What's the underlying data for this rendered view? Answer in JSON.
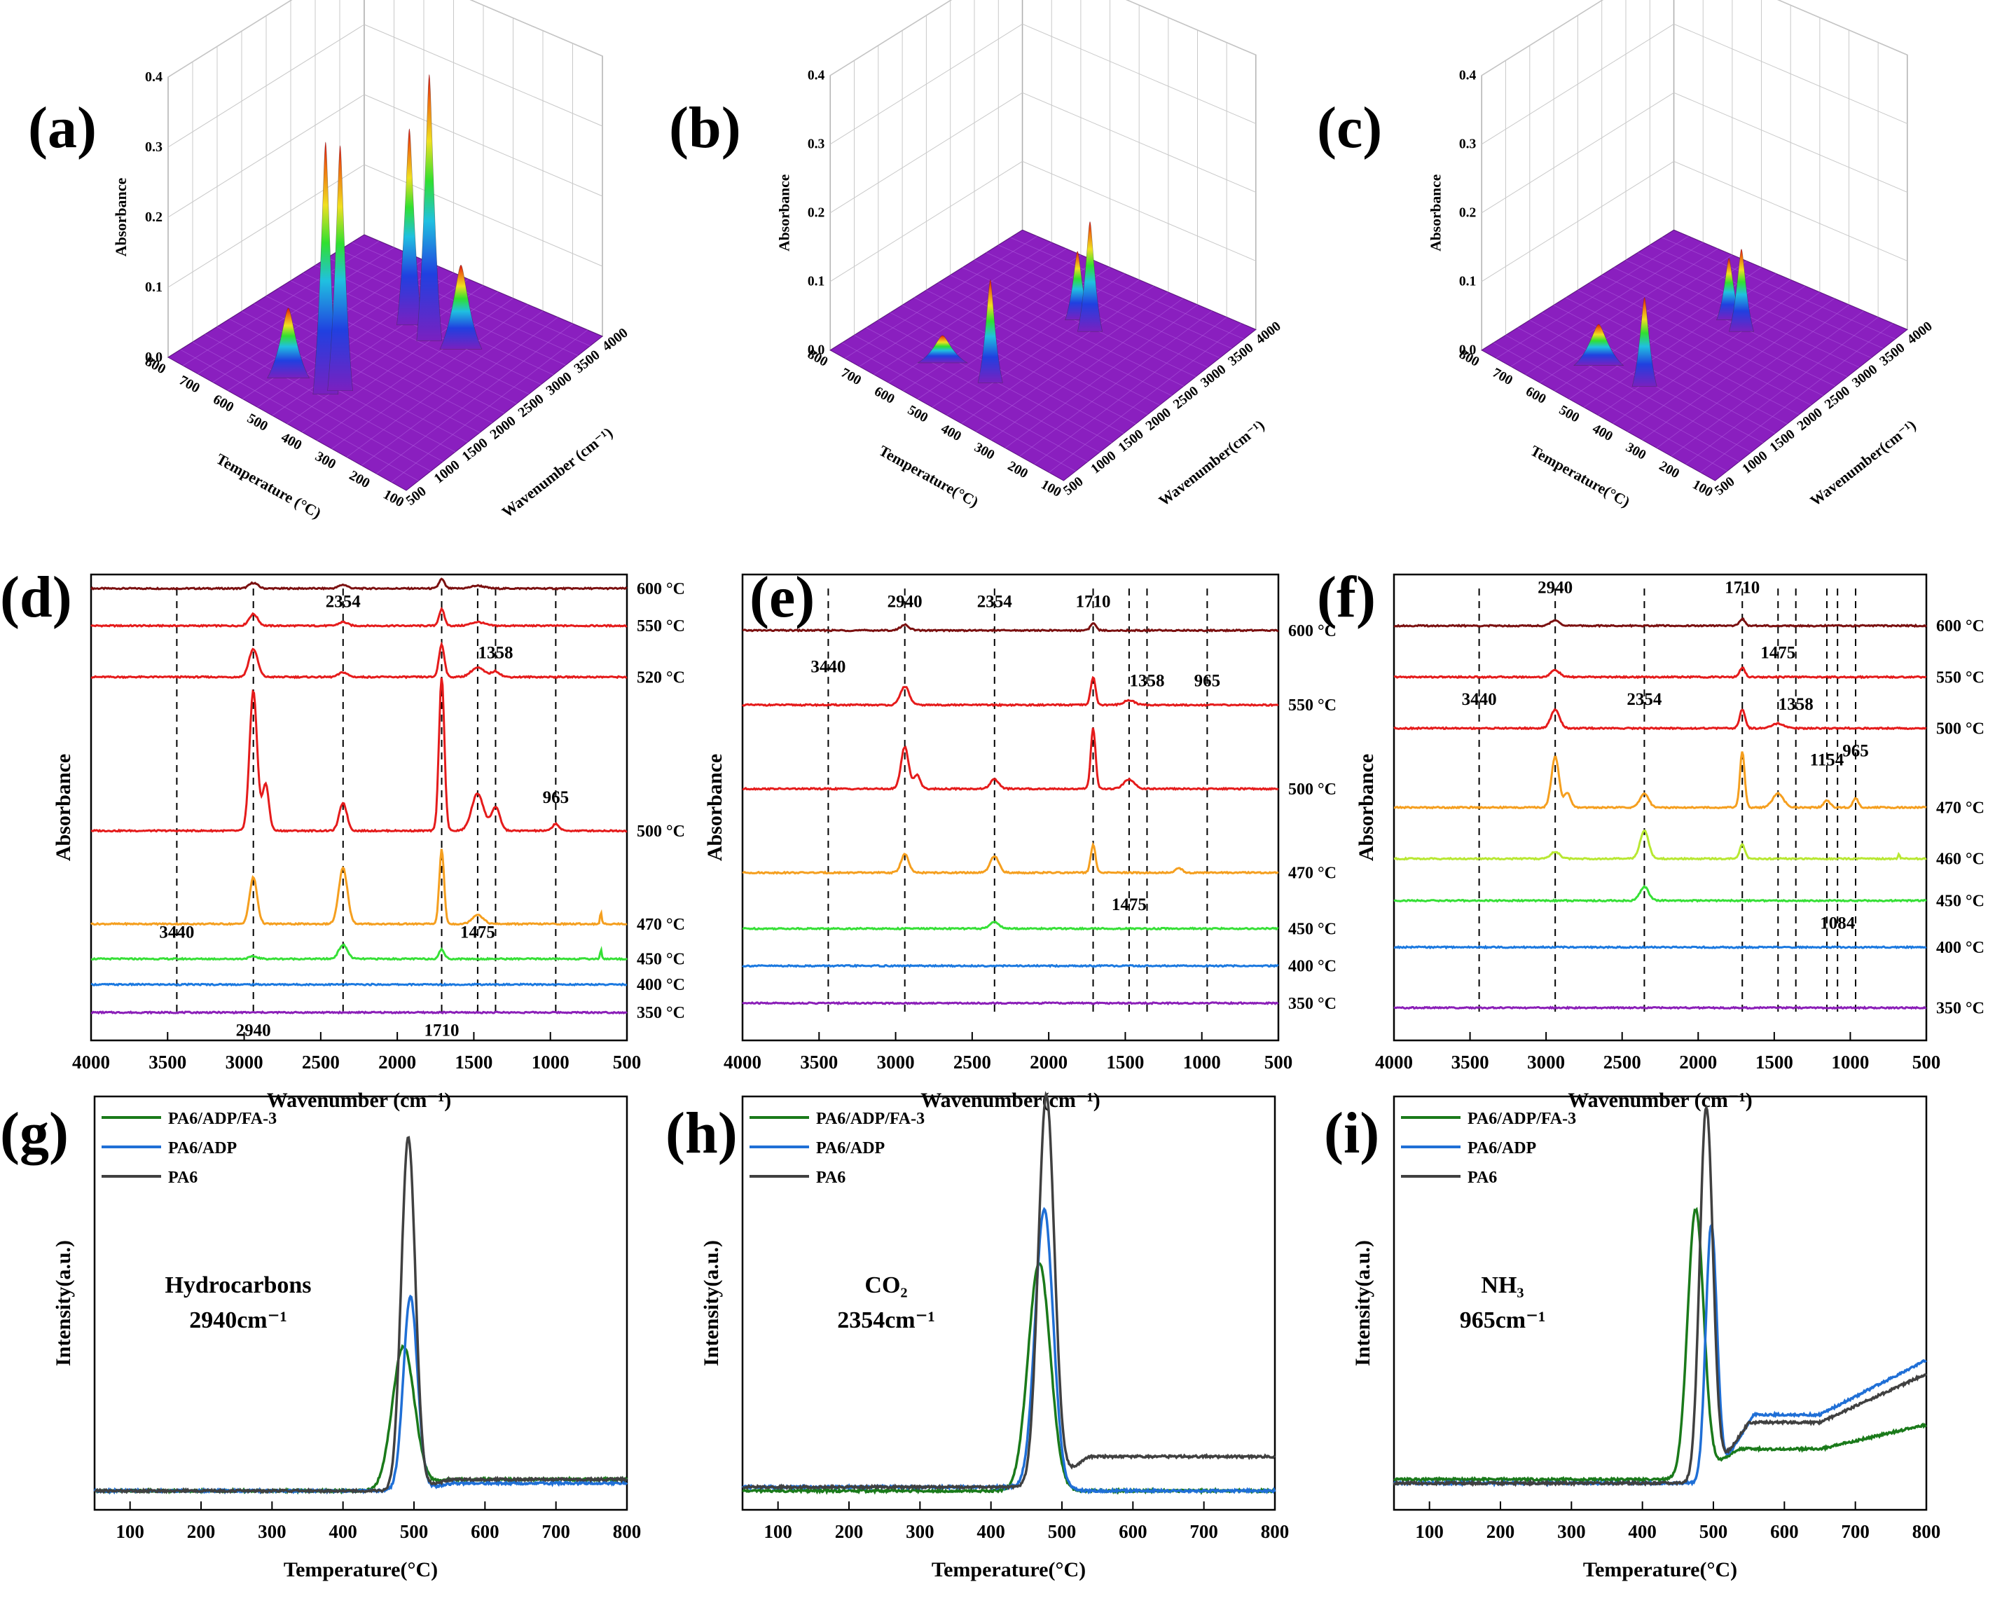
{
  "figure": {
    "panel_labels": [
      "(a)",
      "(b)",
      "(c)",
      "(d)",
      "(e)",
      "(f)",
      "(g)",
      "(h)",
      "(i)"
    ]
  },
  "surface_panels": [
    {
      "id": "a",
      "z_ticks": [
        "0.0",
        "0.1",
        "0.2",
        "0.3",
        "0.4"
      ],
      "z_label": "Absorbance",
      "temp_ticks": [
        "800",
        "700",
        "600",
        "500",
        "400",
        "300",
        "200",
        "100"
      ],
      "temp_label": "Temperature (°C)",
      "wn_ticks": [
        "500",
        "1000",
        "1500",
        "2000",
        "2500",
        "3000",
        "3500",
        "4000"
      ],
      "wn_label": "Wavenumber (cm⁻¹)"
    },
    {
      "id": "b",
      "z_ticks": [
        "0.0",
        "0.1",
        "0.2",
        "0.3",
        "0.4"
      ],
      "z_label": "Absorbance",
      "temp_ticks": [
        "800",
        "700",
        "600",
        "500",
        "400",
        "300",
        "200",
        "100"
      ],
      "temp_label": "Temperature(°C)",
      "wn_ticks": [
        "500",
        "1000",
        "1500",
        "2000",
        "2500",
        "3000",
        "3500",
        "4000"
      ],
      "wn_label": "Wavenumber(cm⁻¹)"
    },
    {
      "id": "c",
      "z_ticks": [
        "0.0",
        "0.1",
        "0.2",
        "0.3",
        "0.4"
      ],
      "z_label": "Absorbance",
      "temp_ticks": [
        "800",
        "700",
        "600",
        "500",
        "400",
        "300",
        "200",
        "100"
      ],
      "temp_label": "Temperature(°C)",
      "wn_ticks": [
        "500",
        "1000",
        "1500",
        "2000",
        "2500",
        "3000",
        "3500",
        "4000"
      ],
      "wn_label": "Wavenumber(cm⁻¹)"
    }
  ],
  "colors": {
    "600": "#7b1010",
    "550": "#e51b1b",
    "520": "#e51b1b",
    "500": "#e51b1b",
    "470": "#f59f1f",
    "460": "#b8e832",
    "450": "#36e036",
    "400": "#1b79e0",
    "350": "#8b1fb8",
    "PA6/ADP/FA-3": "#1a7a1a",
    "PA6/ADP": "#1f6fd6",
    "PA6": "#404040",
    "surface": "#8a1fbf"
  },
  "chart_data": [
    {
      "id": "d",
      "type": "line",
      "title": "",
      "xlabel": "Wavenumber (cm⁻¹)",
      "ylabel": "Absorbance",
      "xlim": [
        4000,
        500
      ],
      "x_ticks": [
        "4000",
        "3500",
        "3000",
        "2500",
        "2000",
        "1500",
        "1000",
        "500"
      ],
      "series": [
        {
          "name": "600 °C",
          "color_key": "600",
          "offset": 0.97,
          "peaks": [
            [
              2940,
              0.012,
              40
            ],
            [
              2354,
              0.008,
              40
            ],
            [
              1710,
              0.02,
              25
            ],
            [
              1475,
              0.006,
              60
            ]
          ]
        },
        {
          "name": "550 °C",
          "color_key": "550",
          "offset": 0.89,
          "peaks": [
            [
              2940,
              0.025,
              40
            ],
            [
              2354,
              0.008,
              40
            ],
            [
              1710,
              0.035,
              25
            ],
            [
              1475,
              0.008,
              60
            ]
          ]
        },
        {
          "name": "520 °C",
          "color_key": "520",
          "offset": 0.78,
          "peaks": [
            [
              2940,
              0.06,
              40
            ],
            [
              2354,
              0.01,
              40
            ],
            [
              1710,
              0.07,
              25
            ],
            [
              1475,
              0.02,
              60
            ],
            [
              1358,
              0.012,
              40
            ]
          ]
        },
        {
          "name": "500 °C",
          "color_key": "500",
          "offset": 0.45,
          "peaks": [
            [
              2940,
              0.3,
              35
            ],
            [
              2860,
              0.1,
              30
            ],
            [
              2354,
              0.06,
              35
            ],
            [
              1710,
              0.33,
              25
            ],
            [
              1475,
              0.08,
              55
            ],
            [
              1358,
              0.05,
              40
            ],
            [
              965,
              0.015,
              30
            ]
          ]
        },
        {
          "name": "470 °C",
          "color_key": "470",
          "offset": 0.25,
          "peaks": [
            [
              2940,
              0.1,
              35
            ],
            [
              2354,
              0.12,
              40
            ],
            [
              1710,
              0.16,
              22
            ],
            [
              1475,
              0.02,
              50
            ],
            [
              670,
              0.025,
              8
            ]
          ]
        },
        {
          "name": "450 °C",
          "color_key": "450",
          "offset": 0.175,
          "peaks": [
            [
              2940,
              0.005,
              40
            ],
            [
              2354,
              0.03,
              40
            ],
            [
              1710,
              0.02,
              25
            ],
            [
              670,
              0.02,
              8
            ]
          ]
        },
        {
          "name": "400 °C",
          "color_key": "400",
          "offset": 0.12,
          "peaks": []
        },
        {
          "name": "350 °C",
          "color_key": "350",
          "offset": 0.06,
          "peaks": []
        }
      ],
      "markers": [
        3440,
        2940,
        2354,
        1710,
        1475,
        1358,
        965
      ],
      "annotations": [
        {
          "text": "2354",
          "x": 2354,
          "y": 0.93
        },
        {
          "text": "1358",
          "x": 1358,
          "y": 0.82
        },
        {
          "text": "965",
          "x": 965,
          "y": 0.51
        },
        {
          "text": "3440",
          "x": 3440,
          "y": 0.22
        },
        {
          "text": "1475",
          "x": 1475,
          "y": 0.22
        },
        {
          "text": "2940",
          "x": 2940,
          "y": 0.01
        },
        {
          "text": "1710",
          "x": 1710,
          "y": 0.01
        }
      ]
    },
    {
      "id": "e",
      "type": "line",
      "title": "",
      "xlabel": "Wavenumber(cm⁻¹)",
      "ylabel": "Absorbance",
      "xlim": [
        4000,
        500
      ],
      "x_ticks": [
        "4000",
        "3500",
        "3000",
        "2500",
        "2000",
        "1500",
        "1000",
        "500"
      ],
      "series": [
        {
          "name": "600 °C",
          "color_key": "600",
          "offset": 0.88,
          "peaks": [
            [
              2940,
              0.012,
              40
            ],
            [
              1710,
              0.015,
              25
            ]
          ]
        },
        {
          "name": "550 °C",
          "color_key": "550",
          "offset": 0.72,
          "peaks": [
            [
              2940,
              0.04,
              40
            ],
            [
              1710,
              0.06,
              22
            ],
            [
              1475,
              0.01,
              50
            ]
          ]
        },
        {
          "name": "500 °C",
          "color_key": "500",
          "offset": 0.54,
          "peaks": [
            [
              2940,
              0.09,
              35
            ],
            [
              2860,
              0.03,
              30
            ],
            [
              2354,
              0.02,
              40
            ],
            [
              1710,
              0.13,
              22
            ],
            [
              1475,
              0.02,
              50
            ]
          ]
        },
        {
          "name": "470 °C",
          "color_key": "470",
          "offset": 0.36,
          "peaks": [
            [
              2940,
              0.04,
              35
            ],
            [
              2354,
              0.035,
              40
            ],
            [
              1710,
              0.06,
              22
            ],
            [
              1150,
              0.01,
              30
            ]
          ]
        },
        {
          "name": "450 °C",
          "color_key": "450",
          "offset": 0.24,
          "peaks": [
            [
              2354,
              0.015,
              40
            ]
          ]
        },
        {
          "name": "400 °C",
          "color_key": "400",
          "offset": 0.16,
          "peaks": []
        },
        {
          "name": "350 °C",
          "color_key": "350",
          "offset": 0.08,
          "peaks": []
        }
      ],
      "markers": [
        3440,
        2940,
        2354,
        1710,
        1475,
        1358,
        965
      ],
      "annotations": [
        {
          "text": "2940",
          "x": 2940,
          "y": 0.93
        },
        {
          "text": "2354",
          "x": 2354,
          "y": 0.93
        },
        {
          "text": "1710",
          "x": 1710,
          "y": 0.93
        },
        {
          "text": "3440",
          "x": 3440,
          "y": 0.79
        },
        {
          "text": "1358",
          "x": 1358,
          "y": 0.76
        },
        {
          "text": "965",
          "x": 965,
          "y": 0.76
        },
        {
          "text": "1475",
          "x": 1475,
          "y": 0.28
        }
      ]
    },
    {
      "id": "f",
      "type": "line",
      "title": "",
      "xlabel": "Wavenumber (cm⁻¹)",
      "ylabel": "Absorbance",
      "xlim": [
        4000,
        500
      ],
      "x_ticks": [
        "4000",
        "3500",
        "3000",
        "2500",
        "2000",
        "1500",
        "1000",
        "500"
      ],
      "series": [
        {
          "name": "600 °C",
          "color_key": "600",
          "offset": 0.89,
          "peaks": [
            [
              2940,
              0.012,
              40
            ],
            [
              1710,
              0.015,
              25
            ]
          ]
        },
        {
          "name": "550 °C",
          "color_key": "550",
          "offset": 0.78,
          "peaks": [
            [
              2940,
              0.015,
              40
            ],
            [
              1710,
              0.02,
              25
            ]
          ]
        },
        {
          "name": "500 °C",
          "color_key": "500",
          "offset": 0.67,
          "peaks": [
            [
              2940,
              0.04,
              40
            ],
            [
              1710,
              0.04,
              25
            ],
            [
              1475,
              0.01,
              50
            ]
          ]
        },
        {
          "name": "470 °C",
          "color_key": "470",
          "offset": 0.5,
          "peaks": [
            [
              2940,
              0.11,
              35
            ],
            [
              2860,
              0.03,
              30
            ],
            [
              2354,
              0.03,
              40
            ],
            [
              1710,
              0.12,
              22
            ],
            [
              1475,
              0.03,
              50
            ],
            [
              1154,
              0.015,
              30
            ],
            [
              965,
              0.02,
              25
            ]
          ]
        },
        {
          "name": "460 °C",
          "color_key": "460",
          "offset": 0.39,
          "peaks": [
            [
              2940,
              0.015,
              40
            ],
            [
              2354,
              0.06,
              40
            ],
            [
              1710,
              0.03,
              25
            ],
            [
              680,
              0.01,
              8
            ]
          ]
        },
        {
          "name": "450 °C",
          "color_key": "450",
          "offset": 0.3,
          "peaks": [
            [
              2354,
              0.03,
              40
            ]
          ]
        },
        {
          "name": "400 °C",
          "color_key": "400",
          "offset": 0.2,
          "peaks": []
        },
        {
          "name": "350 °C",
          "color_key": "350",
          "offset": 0.07,
          "peaks": []
        }
      ],
      "markers": [
        3440,
        2940,
        2354,
        1710,
        1475,
        1358,
        1154,
        1084,
        965
      ],
      "annotations": [
        {
          "text": "2940",
          "x": 2940,
          "y": 0.96
        },
        {
          "text": "1710",
          "x": 1710,
          "y": 0.96
        },
        {
          "text": "1475",
          "x": 1475,
          "y": 0.82
        },
        {
          "text": "3440",
          "x": 3440,
          "y": 0.72
        },
        {
          "text": "2354",
          "x": 2354,
          "y": 0.72
        },
        {
          "text": "1358",
          "x": 1358,
          "y": 0.71
        },
        {
          "text": "1154",
          "x": 1154,
          "y": 0.59
        },
        {
          "text": "965",
          "x": 965,
          "y": 0.61
        },
        {
          "text": "1084",
          "x": 1084,
          "y": 0.24
        }
      ]
    },
    {
      "id": "g",
      "type": "line",
      "xlabel": "Temperature(°C)",
      "ylabel": "Intensity(a.u.)",
      "xlim": [
        50,
        800
      ],
      "ylim": [
        0,
        1
      ],
      "x_ticks": [
        "100",
        "200",
        "300",
        "400",
        "500",
        "600",
        "700",
        "800"
      ],
      "legend": [
        "PA6/ADP/FA-3",
        "PA6/ADP",
        "PA6"
      ],
      "gas_label": "Hydrocarbons",
      "wavenumber_label": "2940cm⁻¹",
      "series": [
        {
          "name": "PA6/ADP/FA-3",
          "color_key": "PA6/ADP/FA-3",
          "base": 0.05,
          "tail": 0.08,
          "peak": [
            485,
            0.38,
            22
          ]
        },
        {
          "name": "PA6/ADP",
          "color_key": "PA6/ADP",
          "base": 0.05,
          "tail": 0.07,
          "peak": [
            495,
            0.51,
            14
          ]
        },
        {
          "name": "PA6",
          "color_key": "PA6",
          "base": 0.05,
          "tail": 0.08,
          "peak": [
            492,
            0.93,
            14
          ]
        }
      ]
    },
    {
      "id": "h",
      "type": "line",
      "xlabel": "Temperature(°C)",
      "ylabel": "Intensity(a.u.)",
      "xlim": [
        50,
        800
      ],
      "ylim": [
        0,
        1
      ],
      "x_ticks": [
        "100",
        "200",
        "300",
        "400",
        "500",
        "600",
        "700",
        "800"
      ],
      "legend": [
        "PA6/ADP/FA-3",
        "PA6/ADP",
        "PA6"
      ],
      "gas_label": "CO₂",
      "wavenumber_label": "2354cm⁻¹",
      "series": [
        {
          "name": "PA6/ADP/FA-3",
          "color_key": "PA6/ADP/FA-3",
          "base": 0.05,
          "tail": 0.05,
          "peak": [
            468,
            0.6,
            22
          ]
        },
        {
          "name": "PA6/ADP",
          "color_key": "PA6/ADP",
          "base": 0.06,
          "tail": 0.05,
          "peak": [
            475,
            0.73,
            18
          ]
        },
        {
          "name": "PA6",
          "color_key": "PA6",
          "base": 0.06,
          "tail": 0.14,
          "peak": [
            478,
            1.03,
            16
          ]
        }
      ]
    },
    {
      "id": "i",
      "type": "line",
      "xlabel": "Temperature(°C)",
      "ylabel": "Intensity(a.u.)",
      "xlim": [
        50,
        800
      ],
      "ylim": [
        0,
        1
      ],
      "x_ticks": [
        "100",
        "200",
        "300",
        "400",
        "500",
        "600",
        "700",
        "800"
      ],
      "legend": [
        "PA6/ADP/FA-3",
        "PA6/ADP",
        "PA6"
      ],
      "gas_label": "NH₃",
      "wavenumber_label": "965cm⁻¹",
      "series": [
        {
          "name": "PA6/ADP/FA-3",
          "color_key": "PA6/ADP/FA-3",
          "base": 0.08,
          "tail": 0.16,
          "peak": [
            475,
            0.71,
            16
          ]
        },
        {
          "name": "PA6/ADP",
          "color_key": "PA6/ADP",
          "base": 0.07,
          "tail": 0.25,
          "peak": [
            497,
            0.68,
            11
          ]
        },
        {
          "name": "PA6",
          "color_key": "PA6",
          "base": 0.07,
          "tail": 0.23,
          "peak": [
            490,
            0.99,
            13
          ]
        }
      ]
    }
  ]
}
